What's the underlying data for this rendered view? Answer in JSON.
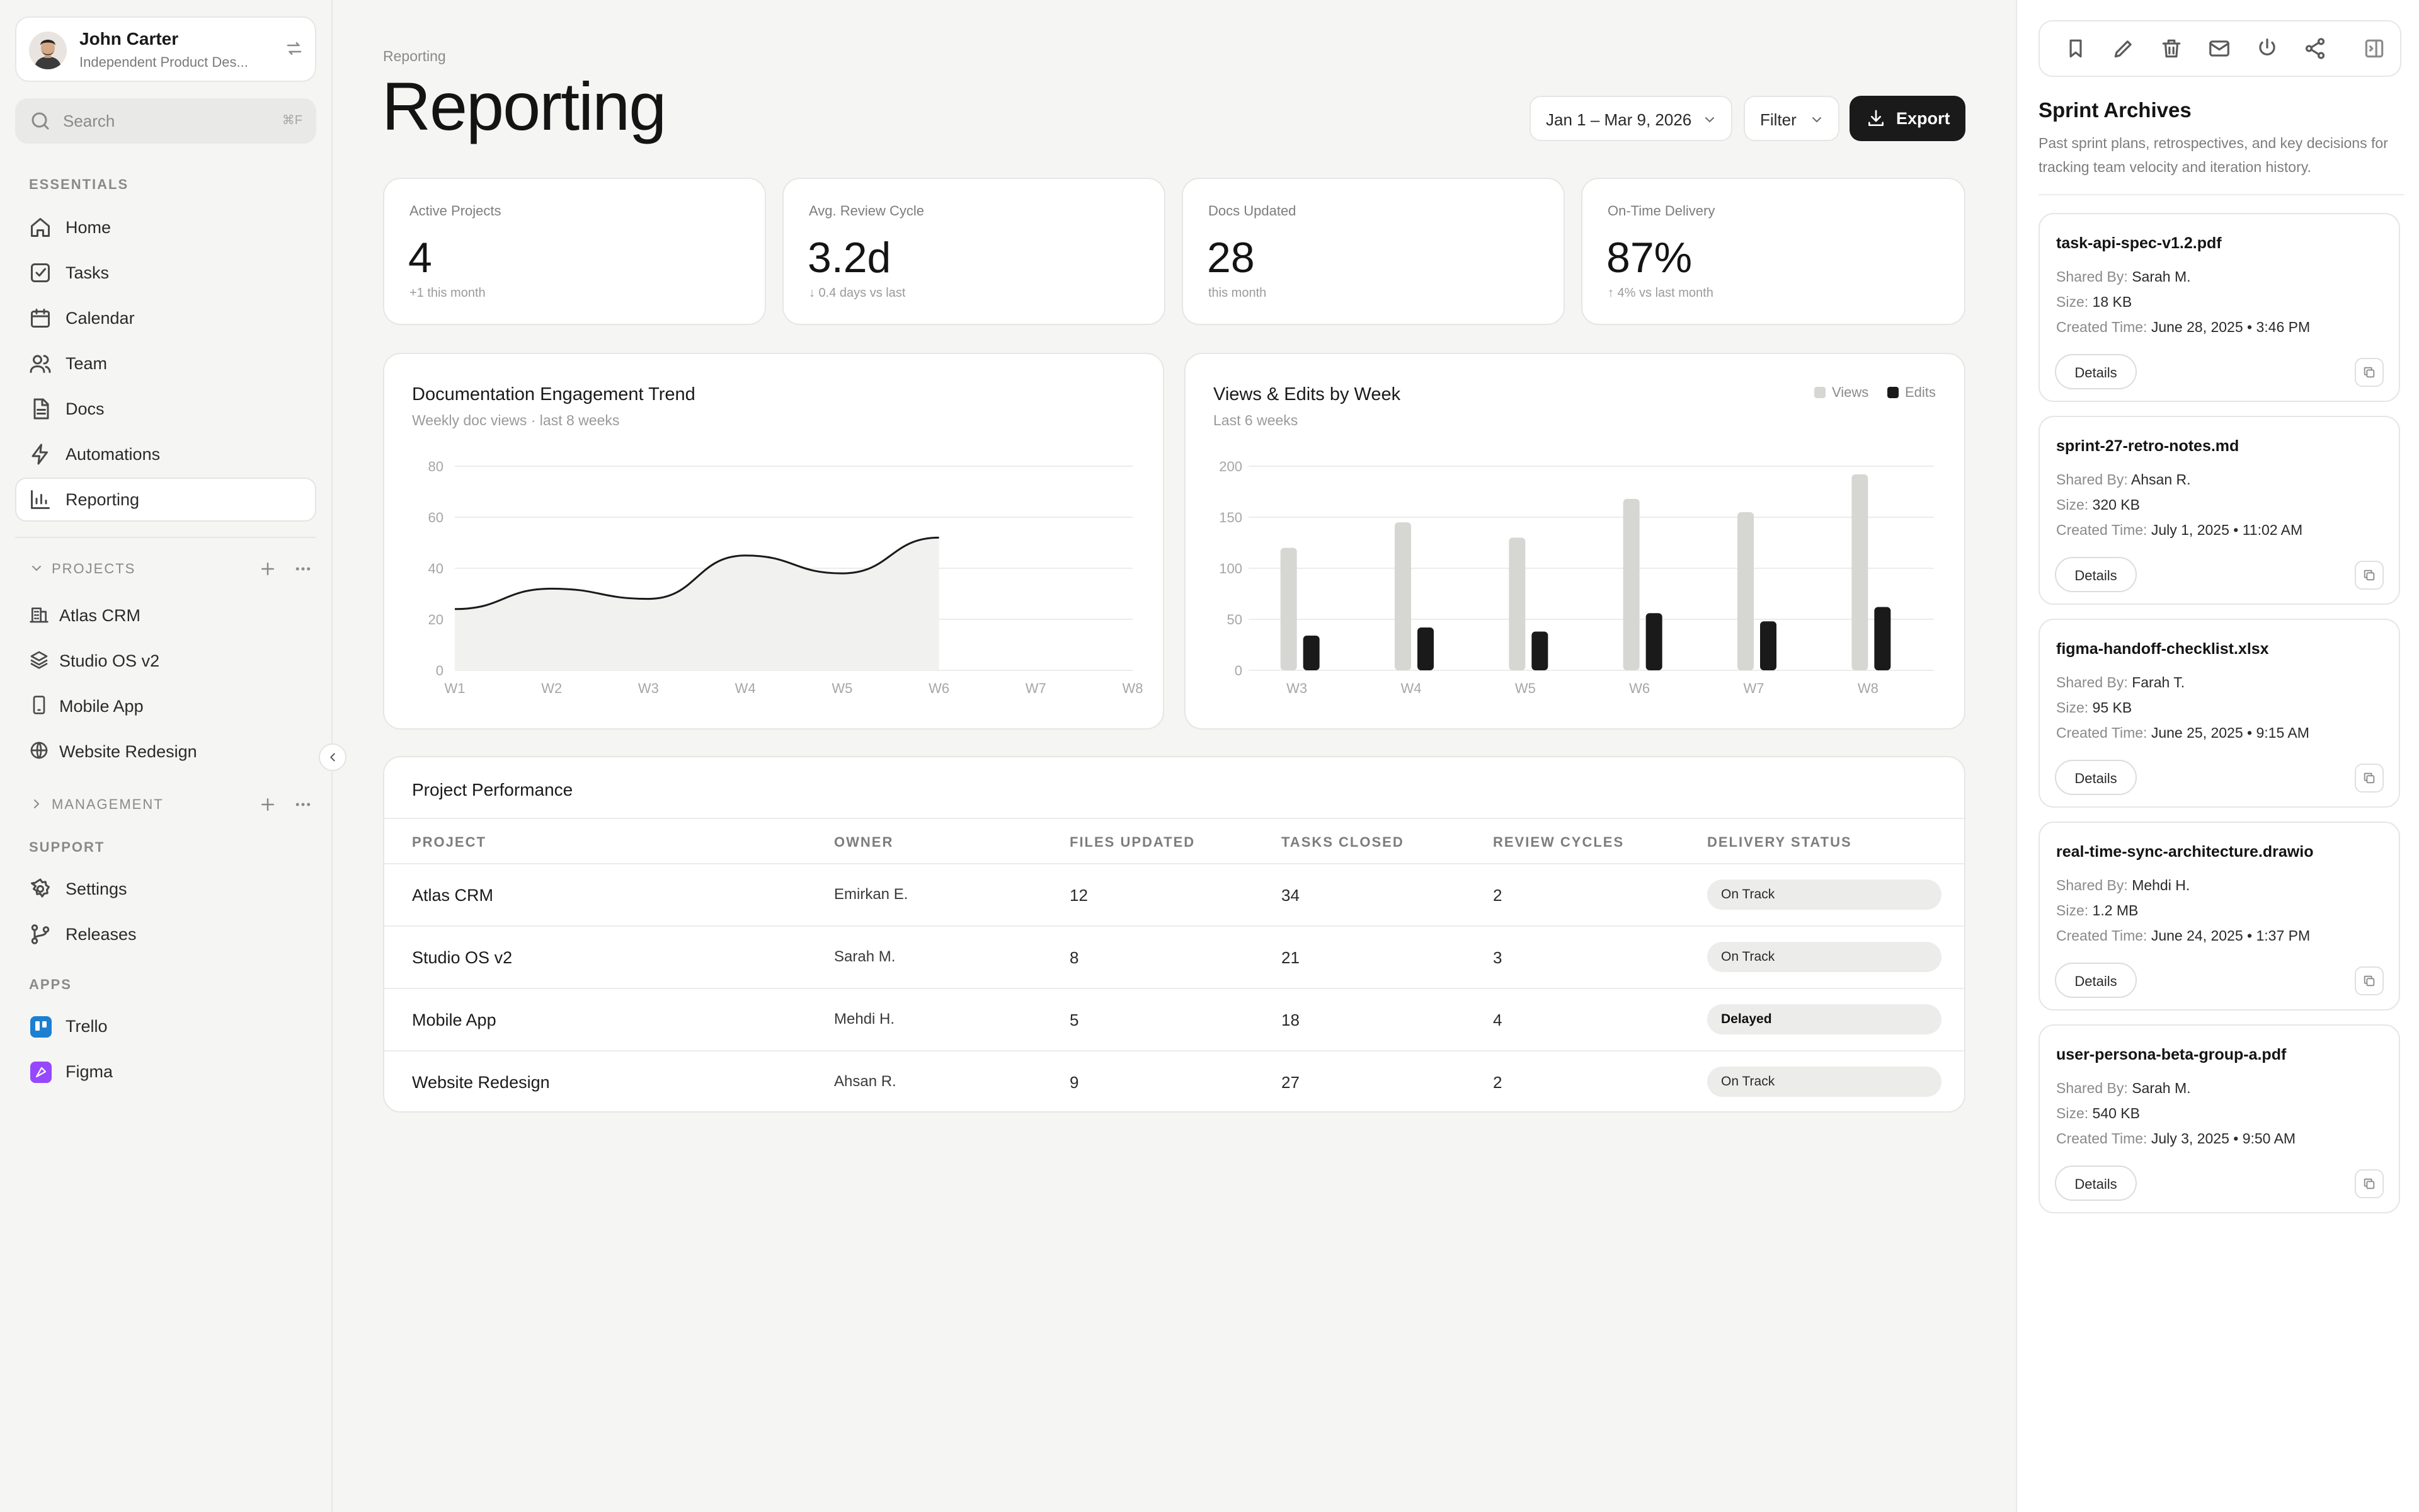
{
  "user": {
    "name": "John Carter",
    "role": "Independent Product Des..."
  },
  "search": {
    "placeholder": "Search",
    "shortcut": "⌘F"
  },
  "sidebar": {
    "essentials_label": "ESSENTIALS",
    "nav": [
      {
        "label": "Home",
        "icon": "home-icon"
      },
      {
        "label": "Tasks",
        "icon": "tasks-icon"
      },
      {
        "label": "Calendar",
        "icon": "calendar-icon"
      },
      {
        "label": "Team",
        "icon": "team-icon"
      },
      {
        "label": "Docs",
        "icon": "docs-icon"
      },
      {
        "label": "Automations",
        "icon": "bolt-icon"
      },
      {
        "label": "Reporting",
        "icon": "chart-icon",
        "active": true
      }
    ],
    "projects_label": "PROJECTS",
    "projects": [
      {
        "label": "Atlas CRM",
        "icon": "building-icon"
      },
      {
        "label": "Studio OS v2",
        "icon": "layers-icon"
      },
      {
        "label": "Mobile App",
        "icon": "phone-icon"
      },
      {
        "label": "Website Redesign",
        "icon": "globe-icon"
      }
    ],
    "management_label": "MANAGEMENT",
    "support_label": "SUPPORT",
    "support": [
      {
        "label": "Settings",
        "icon": "gear-icon"
      },
      {
        "label": "Releases",
        "icon": "branch-icon"
      }
    ],
    "apps_label": "APPS",
    "apps": [
      {
        "label": "Trello",
        "color": "#1d7fd1"
      },
      {
        "label": "Figma",
        "color": "#9747ff"
      }
    ]
  },
  "header": {
    "breadcrumb": "Reporting",
    "title": "Reporting",
    "date_range": "Jan 1 – Mar 9, 2026",
    "filter_label": "Filter",
    "export_label": "Export"
  },
  "kpis": [
    {
      "label": "Active Projects",
      "value": "4",
      "sub": "+1 this month"
    },
    {
      "label": "Avg. Review Cycle",
      "value": "3.2d",
      "sub": "↓ 0.4 days vs last"
    },
    {
      "label": "Docs Updated",
      "value": "28",
      "sub": "this month"
    },
    {
      "label": "On-Time Delivery",
      "value": "87%",
      "sub": "↑ 4% vs last month"
    }
  ],
  "charts": {
    "engagement": {
      "title": "Documentation Engagement Trend",
      "subtitle": "Weekly doc views · last 8 weeks"
    },
    "views_edits": {
      "title": "Views & Edits by Week",
      "subtitle": "Last 6 weeks",
      "legend_views": "Views",
      "legend_edits": "Edits"
    }
  },
  "chart_data": [
    {
      "type": "line",
      "title": "Documentation Engagement Trend",
      "subtitle": "Weekly doc views · last 8 weeks",
      "x": [
        "W1",
        "W2",
        "W3",
        "W4",
        "W5",
        "W6",
        "W7",
        "W8"
      ],
      "series": [
        {
          "values": [
            24,
            32,
            28,
            45,
            38,
            52,
            null,
            null
          ]
        }
      ],
      "ylim": [
        0,
        80
      ],
      "yticks": [
        0,
        20,
        40,
        60,
        80
      ],
      "grid": true,
      "line_color": "#1a1a1a"
    },
    {
      "type": "bar",
      "title": "Views & Edits by Week",
      "subtitle": "Last 6 weeks",
      "categories": [
        "W3",
        "W4",
        "W5",
        "W6",
        "W7",
        "W8"
      ],
      "series": [
        {
          "name": "Views",
          "values": [
            120,
            145,
            130,
            168,
            155,
            192
          ],
          "color": "#d6d6d3"
        },
        {
          "name": "Edits",
          "values": [
            34,
            42,
            38,
            56,
            48,
            62
          ],
          "color": "#1a1a1a"
        }
      ],
      "ylim": [
        0,
        200
      ],
      "yticks": [
        0,
        50,
        100,
        150,
        200
      ],
      "grid": true,
      "legend": "top-right"
    }
  ],
  "table": {
    "title": "Project Performance",
    "columns": [
      "PROJECT",
      "OWNER",
      "FILES UPDATED",
      "TASKS CLOSED",
      "REVIEW CYCLES",
      "DELIVERY STATUS"
    ],
    "rows": [
      {
        "project": "Atlas CRM",
        "owner": "Emirkan E.",
        "files": "12",
        "tasks": "34",
        "reviews": "2",
        "status": "On Track"
      },
      {
        "project": "Studio OS v2",
        "owner": "Sarah M.",
        "files": "8",
        "tasks": "21",
        "reviews": "3",
        "status": "On Track"
      },
      {
        "project": "Mobile App",
        "owner": "Mehdi H.",
        "files": "5",
        "tasks": "18",
        "reviews": "4",
        "status": "Delayed"
      },
      {
        "project": "Website Redesign",
        "owner": "Ahsan R.",
        "files": "9",
        "tasks": "27",
        "reviews": "2",
        "status": "On Track"
      }
    ]
  },
  "panel": {
    "title": "Sprint Archives",
    "description": "Past sprint plans, retrospectives, and key decisions for tracking team velocity and iteration history.",
    "shared_by_label": "Shared By:",
    "size_label": "Size:",
    "created_label": "Created Time:",
    "details_label": "Details",
    "files": [
      {
        "name": "task-api-spec-v1.2.pdf",
        "shared_by": "Sarah M.",
        "size": "18 KB",
        "created": "June 28, 2025 • 3:46 PM"
      },
      {
        "name": "sprint-27-retro-notes.md",
        "shared_by": "Ahsan R.",
        "size": "320 KB",
        "created": "July 1, 2025 • 11:02 AM"
      },
      {
        "name": "figma-handoff-checklist.xlsx",
        "shared_by": "Farah T.",
        "size": "95 KB",
        "created": "June 25, 2025 • 9:15 AM"
      },
      {
        "name": "real-time-sync-architecture.drawio",
        "shared_by": "Mehdi H.",
        "size": "1.2 MB",
        "created": "June 24, 2025 • 1:37 PM"
      },
      {
        "name": "user-persona-beta-group-a.pdf",
        "shared_by": "Sarah M.",
        "size": "540 KB",
        "created": "July 3, 2025 • 9:50 AM"
      }
    ]
  }
}
